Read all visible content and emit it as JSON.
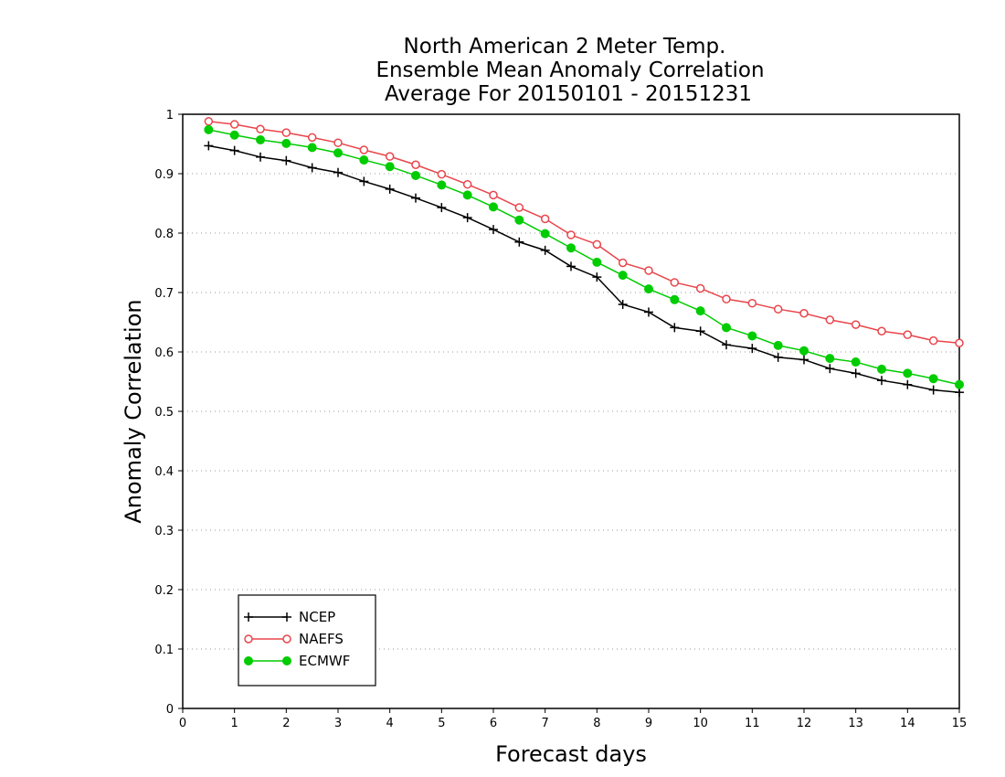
{
  "chart_data": {
    "type": "line",
    "title": [
      "North American 2 Meter Temp.",
      "Ensemble Mean Anomaly Correlation",
      "Average For 20150101 - 20151231"
    ],
    "xlabel": "Forecast days",
    "ylabel": "Anomaly Correlation",
    "xlim": [
      0,
      15
    ],
    "ylim": [
      0,
      1
    ],
    "x_ticks": [
      "0",
      "1",
      "2",
      "3",
      "4",
      "5",
      "6",
      "7",
      "8",
      "9",
      "10",
      "11",
      "12",
      "13",
      "14",
      "15"
    ],
    "y_ticks": [
      "0",
      "0.1",
      "0.2",
      "0.3",
      "0.4",
      "0.5",
      "0.6",
      "0.7",
      "0.8",
      "0.9",
      "1"
    ],
    "grid": "horizontal dotted",
    "legend_position": "bottom-left",
    "x": [
      0.5,
      1,
      1.5,
      2,
      2.5,
      3,
      3.5,
      4,
      4.5,
      5,
      5.5,
      6,
      6.5,
      7,
      7.5,
      8,
      8.5,
      9,
      9.5,
      10,
      10.5,
      11,
      11.5,
      12,
      12.5,
      13,
      13.5,
      14,
      14.5,
      15
    ],
    "series": [
      {
        "name": "NCEP",
        "color": "#000000",
        "marker": "plus",
        "values": [
          0.947,
          0.939,
          0.928,
          0.922,
          0.91,
          0.902,
          0.887,
          0.874,
          0.859,
          0.843,
          0.826,
          0.806,
          0.785,
          0.771,
          0.744,
          0.726,
          0.68,
          0.667,
          0.641,
          0.635,
          0.612,
          0.606,
          0.591,
          0.587,
          0.572,
          0.564,
          0.552,
          0.545,
          0.536,
          0.532
        ]
      },
      {
        "name": "NAEFS",
        "color": "#e8454b",
        "marker": "open-circle",
        "values": [
          0.988,
          0.983,
          0.975,
          0.969,
          0.961,
          0.952,
          0.94,
          0.929,
          0.915,
          0.899,
          0.882,
          0.864,
          0.843,
          0.824,
          0.797,
          0.781,
          0.75,
          0.737,
          0.717,
          0.707,
          0.689,
          0.682,
          0.672,
          0.665,
          0.654,
          0.646,
          0.635,
          0.629,
          0.619,
          0.615
        ]
      },
      {
        "name": "ECMWF",
        "color": "#00cc00",
        "marker": "filled-circle",
        "values": [
          0.974,
          0.965,
          0.957,
          0.951,
          0.944,
          0.935,
          0.923,
          0.912,
          0.897,
          0.881,
          0.864,
          0.844,
          0.822,
          0.799,
          0.775,
          0.751,
          0.729,
          0.706,
          0.688,
          0.669,
          0.641,
          0.627,
          0.611,
          0.602,
          0.589,
          0.583,
          0.571,
          0.564,
          0.555,
          0.545
        ]
      }
    ]
  }
}
